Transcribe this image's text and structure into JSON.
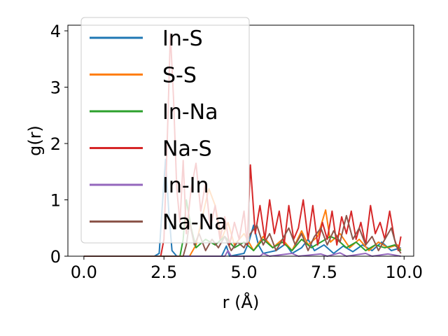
{
  "chart_data": {
    "type": "line",
    "xlabel": "r (Å)",
    "ylabel": "g(r)",
    "xlim": [
      -0.5,
      10.3
    ],
    "ylim": [
      0,
      4.1
    ],
    "xticks": [
      0.0,
      2.5,
      5.0,
      7.5,
      10.0
    ],
    "xtick_labels": [
      "0.0",
      "2.5",
      "5.0",
      "7.5",
      "10.0"
    ],
    "yticks": [
      0,
      1,
      2,
      3,
      4
    ],
    "ytick_labels": [
      "0",
      "1",
      "2",
      "3",
      "4"
    ],
    "grid": false,
    "legend_position": "upper-left",
    "series": [
      {
        "name": "In-S",
        "color": "#1f77b4",
        "points": [
          [
            0,
            0
          ],
          [
            2.2,
            0
          ],
          [
            2.35,
            0.05
          ],
          [
            2.45,
            0.9
          ],
          [
            2.55,
            1.72
          ],
          [
            2.65,
            0.8
          ],
          [
            2.75,
            0.1
          ],
          [
            2.9,
            0
          ],
          [
            3.5,
            0
          ],
          [
            4.3,
            0
          ],
          [
            4.45,
            0.18
          ],
          [
            4.55,
            0
          ],
          [
            5.0,
            0.05
          ],
          [
            5.15,
            0.25
          ],
          [
            5.3,
            0.55
          ],
          [
            5.45,
            0.2
          ],
          [
            5.6,
            0.05
          ],
          [
            6.0,
            0.1
          ],
          [
            6.3,
            0.22
          ],
          [
            6.5,
            0.05
          ],
          [
            6.8,
            0.15
          ],
          [
            7.0,
            0.3
          ],
          [
            7.2,
            0.1
          ],
          [
            7.5,
            0.2
          ],
          [
            7.8,
            0.05
          ],
          [
            8.1,
            0.18
          ],
          [
            8.4,
            0.08
          ],
          [
            8.7,
            0.2
          ],
          [
            9.0,
            0.1
          ],
          [
            9.3,
            0.25
          ],
          [
            9.6,
            0.1
          ],
          [
            9.9,
            0.15
          ]
        ]
      },
      {
        "name": "S-S",
        "color": "#ff7f0e",
        "points": [
          [
            0,
            0
          ],
          [
            3.3,
            0
          ],
          [
            3.5,
            0.2
          ],
          [
            3.7,
            0.7
          ],
          [
            3.9,
            1.2
          ],
          [
            4.1,
            0.9
          ],
          [
            4.3,
            0.3
          ],
          [
            4.5,
            0.6
          ],
          [
            4.7,
            0.2
          ],
          [
            5.0,
            0.4
          ],
          [
            5.3,
            0.1
          ],
          [
            5.6,
            0.35
          ],
          [
            5.9,
            0.15
          ],
          [
            6.2,
            0.3
          ],
          [
            6.5,
            0.1
          ],
          [
            6.8,
            0.45
          ],
          [
            7.0,
            0.2
          ],
          [
            7.3,
            0.35
          ],
          [
            7.55,
            0.82
          ],
          [
            7.7,
            0.25
          ],
          [
            8.0,
            0.4
          ],
          [
            8.3,
            0.15
          ],
          [
            8.6,
            0.3
          ],
          [
            8.9,
            0.1
          ],
          [
            9.2,
            0.25
          ],
          [
            9.5,
            0.15
          ],
          [
            9.8,
            0.2
          ],
          [
            9.9,
            0.1
          ]
        ]
      },
      {
        "name": "In-Na",
        "color": "#2ca02c",
        "points": [
          [
            0,
            0
          ],
          [
            3.0,
            0
          ],
          [
            3.1,
            0.3
          ],
          [
            3.2,
            1.0
          ],
          [
            3.35,
            0.5
          ],
          [
            3.5,
            0.15
          ],
          [
            3.8,
            0.3
          ],
          [
            4.1,
            0.2
          ],
          [
            4.4,
            0.35
          ],
          [
            4.7,
            0.15
          ],
          [
            5.0,
            0.25
          ],
          [
            5.3,
            0.1
          ],
          [
            5.6,
            0.3
          ],
          [
            5.9,
            0.15
          ],
          [
            6.2,
            0.25
          ],
          [
            6.5,
            0.1
          ],
          [
            6.8,
            0.3
          ],
          [
            7.1,
            0.15
          ],
          [
            7.4,
            0.25
          ],
          [
            7.7,
            0.35
          ],
          [
            7.9,
            0.3
          ],
          [
            8.2,
            0.15
          ],
          [
            8.5,
            0.25
          ],
          [
            8.8,
            0.1
          ],
          [
            9.1,
            0.2
          ],
          [
            9.4,
            0.15
          ],
          [
            9.7,
            0.2
          ],
          [
            9.9,
            0.1
          ]
        ]
      },
      {
        "name": "Na-S",
        "color": "#d62728",
        "points": [
          [
            0,
            0
          ],
          [
            2.4,
            0
          ],
          [
            2.5,
            0.3
          ],
          [
            2.6,
            2.0
          ],
          [
            2.7,
            3.95
          ],
          [
            2.8,
            2.8
          ],
          [
            2.9,
            1.2
          ],
          [
            3.0,
            0.6
          ],
          [
            3.1,
            1.7
          ],
          [
            3.2,
            0.4
          ],
          [
            3.35,
            1.2
          ],
          [
            3.5,
            1.65
          ],
          [
            3.65,
            0.8
          ],
          [
            3.8,
            1.3
          ],
          [
            3.95,
            0.5
          ],
          [
            4.1,
            0.9
          ],
          [
            4.25,
            0.3
          ],
          [
            4.4,
            0.7
          ],
          [
            4.55,
            0.2
          ],
          [
            4.7,
            0.6
          ],
          [
            4.85,
            0.3
          ],
          [
            5.0,
            0.8
          ],
          [
            5.1,
            0.2
          ],
          [
            5.2,
            1.62
          ],
          [
            5.35,
            0.4
          ],
          [
            5.5,
            0.9
          ],
          [
            5.65,
            0.3
          ],
          [
            5.8,
            1.0
          ],
          [
            5.95,
            0.4
          ],
          [
            6.1,
            0.8
          ],
          [
            6.25,
            0.2
          ],
          [
            6.4,
            0.9
          ],
          [
            6.55,
            0.3
          ],
          [
            6.7,
            0.5
          ],
          [
            6.85,
            1.0
          ],
          [
            7.0,
            0.3
          ],
          [
            7.15,
            0.9
          ],
          [
            7.3,
            0.2
          ],
          [
            7.45,
            0.6
          ],
          [
            7.6,
            0.3
          ],
          [
            7.75,
            0.8
          ],
          [
            7.9,
            0.2
          ],
          [
            8.05,
            0.7
          ],
          [
            8.2,
            0.4
          ],
          [
            8.35,
            0.8
          ],
          [
            8.5,
            0.3
          ],
          [
            8.65,
            0.6
          ],
          [
            8.8,
            0.2
          ],
          [
            8.95,
            0.9
          ],
          [
            9.1,
            0.4
          ],
          [
            9.25,
            0.6
          ],
          [
            9.4,
            0.3
          ],
          [
            9.55,
            0.8
          ],
          [
            9.7,
            0.3
          ],
          [
            9.82,
            0.1
          ],
          [
            9.9,
            0.35
          ]
        ]
      },
      {
        "name": "In-In",
        "color": "#9467bd",
        "points": [
          [
            0,
            0
          ],
          [
            4.4,
            0
          ],
          [
            4.5,
            0.1
          ],
          [
            4.6,
            0
          ],
          [
            5.5,
            0
          ],
          [
            5.6,
            0.05
          ],
          [
            5.8,
            0
          ],
          [
            6.5,
            0.05
          ],
          [
            6.7,
            0
          ],
          [
            7.4,
            0.04
          ],
          [
            7.6,
            0
          ],
          [
            8.0,
            0.06
          ],
          [
            8.2,
            0
          ],
          [
            8.8,
            0.05
          ],
          [
            9.0,
            0
          ],
          [
            9.5,
            0.04
          ],
          [
            9.7,
            0.02
          ],
          [
            9.9,
            0
          ]
        ]
      },
      {
        "name": "Na-Na",
        "color": "#8c564b",
        "points": [
          [
            0,
            0
          ],
          [
            3.1,
            0
          ],
          [
            3.2,
            0.2
          ],
          [
            3.3,
            0.6
          ],
          [
            3.45,
            0.2
          ],
          [
            3.6,
            0.4
          ],
          [
            3.8,
            0.1
          ],
          [
            4.0,
            0.3
          ],
          [
            4.2,
            0.15
          ],
          [
            4.4,
            0.35
          ],
          [
            4.6,
            0.1
          ],
          [
            4.8,
            0.25
          ],
          [
            5.0,
            0.15
          ],
          [
            5.2,
            0.4
          ],
          [
            5.4,
            0.55
          ],
          [
            5.6,
            0.2
          ],
          [
            5.8,
            0.4
          ],
          [
            6.0,
            0.1
          ],
          [
            6.2,
            0.3
          ],
          [
            6.4,
            0.5
          ],
          [
            6.6,
            0.2
          ],
          [
            6.8,
            0.4
          ],
          [
            7.0,
            0.1
          ],
          [
            7.2,
            0.35
          ],
          [
            7.4,
            0.5
          ],
          [
            7.6,
            0.2
          ],
          [
            7.8,
            0.45
          ],
          [
            8.0,
            0.25
          ],
          [
            8.2,
            0.72
          ],
          [
            8.4,
            0.3
          ],
          [
            8.6,
            0.5
          ],
          [
            8.8,
            0.2
          ],
          [
            9.0,
            0.35
          ],
          [
            9.2,
            0.1
          ],
          [
            9.4,
            0.3
          ],
          [
            9.6,
            0.5
          ],
          [
            9.75,
            0.2
          ],
          [
            9.9,
            0.05
          ]
        ]
      }
    ]
  }
}
